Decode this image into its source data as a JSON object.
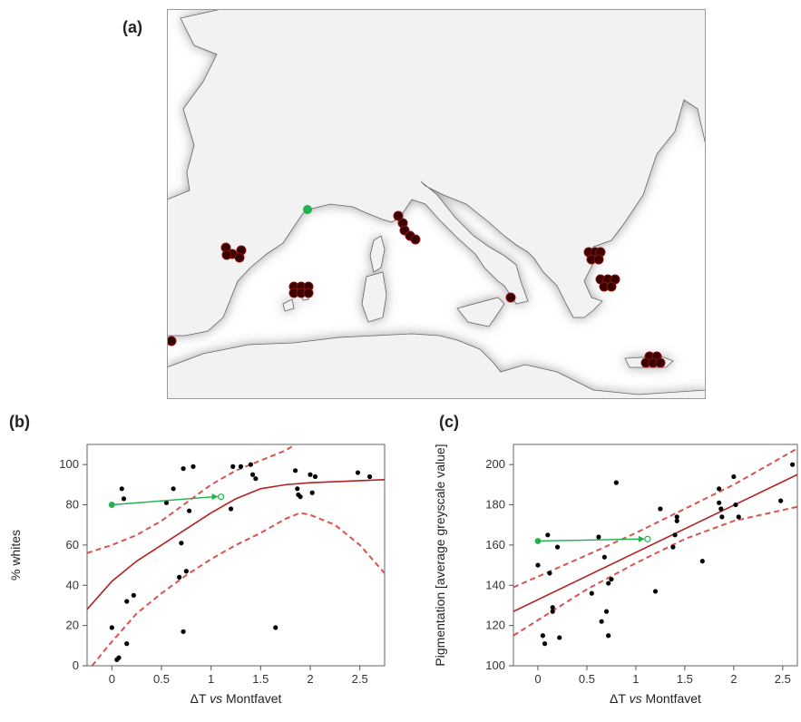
{
  "panels": {
    "a": "(a)",
    "b": "(b)",
    "c": "(c)"
  },
  "map": {
    "colors": {
      "sea": "#ffffff",
      "land": "#f2f2f2",
      "border": "#777777",
      "site": "#3a0000",
      "site_outline": "#8a1010",
      "reference": "#22b14c"
    }
  },
  "chart_data": [
    {
      "type": "scatter",
      "panel": "(b)",
      "title": "",
      "xlabel_parts": [
        "ΔT ",
        "vs",
        " Montfavet"
      ],
      "ylabel": "% whites",
      "xlim": [
        -0.25,
        2.75
      ],
      "ylim": [
        0,
        110
      ],
      "xticks": [
        0,
        0.5,
        1,
        1.5,
        2,
        2.5
      ],
      "xtick_labels": [
        "0",
        "0.5",
        "1",
        "1.5",
        "2",
        "2.5"
      ],
      "yticks": [
        0,
        20,
        40,
        60,
        80,
        100
      ],
      "ytick_labels": [
        "0",
        "20",
        "40",
        "60",
        "80",
        "100"
      ],
      "grid": false,
      "points": [
        [
          0.0,
          19
        ],
        [
          0.05,
          3
        ],
        [
          0.07,
          4
        ],
        [
          0.1,
          88
        ],
        [
          0.12,
          83
        ],
        [
          0.15,
          11
        ],
        [
          0.15,
          32
        ],
        [
          0.22,
          35
        ],
        [
          0.55,
          81
        ],
        [
          0.62,
          88
        ],
        [
          0.68,
          44
        ],
        [
          0.7,
          61
        ],
        [
          0.72,
          17
        ],
        [
          0.72,
          98
        ],
        [
          0.75,
          47
        ],
        [
          0.78,
          77
        ],
        [
          0.82,
          99
        ],
        [
          1.2,
          78
        ],
        [
          1.22,
          99
        ],
        [
          1.3,
          99
        ],
        [
          1.4,
          100
        ],
        [
          1.42,
          95
        ],
        [
          1.45,
          93
        ],
        [
          1.65,
          19
        ],
        [
          1.85,
          97
        ],
        [
          1.87,
          88
        ],
        [
          1.88,
          85
        ],
        [
          1.9,
          84
        ],
        [
          2.0,
          95
        ],
        [
          2.02,
          86
        ],
        [
          2.05,
          94
        ],
        [
          2.48,
          96
        ],
        [
          2.6,
          94
        ]
      ],
      "reference_shift": {
        "from": [
          0.0,
          80
        ],
        "to": [
          1.1,
          84
        ]
      },
      "fit": {
        "x": [
          -0.25,
          0,
          0.25,
          0.5,
          0.75,
          1.0,
          1.25,
          1.5,
          1.75,
          2.0,
          2.25,
          2.5,
          2.75
        ],
        "y": [
          28,
          42,
          52,
          60,
          68,
          76,
          83,
          88,
          90,
          91,
          91.5,
          92,
          92.5
        ]
      },
      "ci_upper": {
        "x": [
          -0.25,
          0,
          0.25,
          0.5,
          0.75,
          1.0,
          1.25,
          1.5,
          1.75,
          1.85
        ],
        "y": [
          56,
          60,
          65,
          72,
          81,
          90,
          97,
          102,
          107,
          110
        ]
      },
      "ci_lower": {
        "x": [
          -0.2,
          0,
          0.25,
          0.5,
          0.75,
          1.0,
          1.25,
          1.5,
          1.75,
          1.9,
          2.0,
          2.25,
          2.5,
          2.75
        ],
        "y": [
          0,
          12,
          26,
          36,
          45,
          53,
          60,
          66,
          73,
          76,
          75,
          70,
          60,
          46
        ]
      },
      "colors": {
        "points": "#000000",
        "fit": "#b22222",
        "ci": "#d9534f",
        "arrow": "#22b14c"
      }
    },
    {
      "type": "scatter",
      "panel": "(c)",
      "title": "",
      "xlabel_parts": [
        "ΔT ",
        "vs",
        " Montfavet"
      ],
      "ylabel": "Pigmentation [average greyscale value]",
      "xlim": [
        -0.25,
        2.65
      ],
      "ylim": [
        100,
        210
      ],
      "xticks": [
        0,
        0.5,
        1,
        1.5,
        2,
        2.5
      ],
      "xtick_labels": [
        "0",
        "0.5",
        "1",
        "1.5",
        "2",
        "2.5"
      ],
      "yticks": [
        100,
        120,
        140,
        160,
        180,
        200
      ],
      "ytick_labels": [
        "100",
        "120",
        "140",
        "160",
        "180",
        "200"
      ],
      "grid": false,
      "points": [
        [
          0.0,
          150
        ],
        [
          0.05,
          115
        ],
        [
          0.07,
          111
        ],
        [
          0.1,
          165
        ],
        [
          0.12,
          146
        ],
        [
          0.15,
          129
        ],
        [
          0.15,
          127
        ],
        [
          0.2,
          159
        ],
        [
          0.22,
          114
        ],
        [
          0.55,
          136
        ],
        [
          0.62,
          164
        ],
        [
          0.65,
          122
        ],
        [
          0.68,
          154
        ],
        [
          0.7,
          127
        ],
        [
          0.72,
          115
        ],
        [
          0.72,
          141
        ],
        [
          0.75,
          143
        ],
        [
          0.8,
          191
        ],
        [
          1.2,
          137
        ],
        [
          1.25,
          178
        ],
        [
          1.38,
          159
        ],
        [
          1.4,
          165
        ],
        [
          1.42,
          174
        ],
        [
          1.42,
          172
        ],
        [
          1.68,
          152
        ],
        [
          1.85,
          188
        ],
        [
          1.85,
          181
        ],
        [
          1.87,
          178
        ],
        [
          1.88,
          174
        ],
        [
          2.0,
          194
        ],
        [
          2.02,
          180
        ],
        [
          2.05,
          174
        ],
        [
          2.48,
          182
        ],
        [
          2.6,
          200
        ]
      ],
      "reference_shift": {
        "from": [
          0.0,
          162
        ],
        "to": [
          1.12,
          163
        ]
      },
      "fit": {
        "x": [
          -0.25,
          2.65
        ],
        "y": [
          127,
          195
        ]
      },
      "ci_upper": {
        "x": [
          -0.25,
          0.5,
          1.0,
          1.5,
          2.0,
          2.65
        ],
        "y": [
          139,
          155,
          166,
          178,
          190,
          208
        ]
      },
      "ci_lower": {
        "x": [
          -0.25,
          0.5,
          1.0,
          1.5,
          2.0,
          2.65
        ],
        "y": [
          115,
          138,
          151,
          163,
          172,
          179
        ]
      },
      "colors": {
        "points": "#000000",
        "fit": "#b22222",
        "ci": "#d9534f",
        "arrow": "#22b14c"
      }
    }
  ]
}
